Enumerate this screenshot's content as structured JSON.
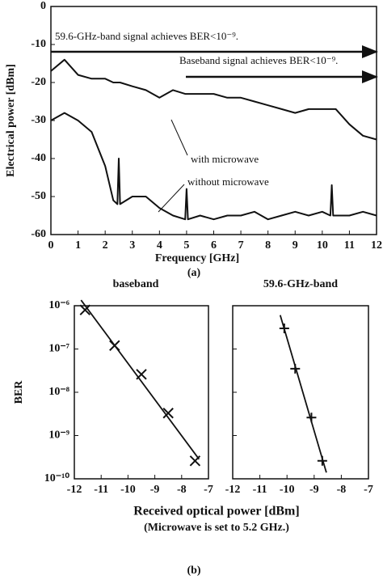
{
  "chart_data": [
    {
      "type": "line",
      "xlabel": "Frequency [GHz]",
      "ylabel": "Electrical power [dBm]",
      "caption": "(a)",
      "xlim": [
        0,
        12
      ],
      "ylim": [
        -60,
        0
      ],
      "xticks": [
        0,
        1,
        2,
        3,
        4,
        5,
        6,
        7,
        8,
        9,
        10,
        11,
        12
      ],
      "yticks": [
        0,
        -10,
        -20,
        -30,
        -40,
        -50,
        -60
      ],
      "annotations": [
        "59.6-GHz-band signal achieves BER<10⁻⁹.",
        "Baseband signal achieves BER<10⁻⁹."
      ],
      "x": [
        0,
        0.5,
        1,
        1.5,
        2,
        2.3,
        2.45,
        2.5,
        2.55,
        3,
        3.5,
        4,
        4.5,
        4.95,
        5,
        5.05,
        5.5,
        6,
        6.5,
        7,
        7.5,
        8,
        8.5,
        9,
        9.5,
        10,
        10.3,
        10.35,
        10.4,
        10.5,
        11,
        11.5,
        12
      ],
      "series": [
        {
          "name": "with microwave",
          "color": "#111111",
          "values": [
            -17,
            -14,
            -18,
            -19,
            -19,
            -20,
            -20,
            -20,
            -20,
            -21,
            -22,
            -24,
            -22,
            -23,
            -23,
            -23,
            -23,
            -23,
            -24,
            -24,
            -25,
            -26,
            -27,
            -28,
            -27,
            -27,
            -27,
            -27,
            -27,
            -27,
            -31,
            -34,
            -35
          ]
        },
        {
          "name": "without microwave",
          "color": "#111111",
          "values": [
            -30,
            -28,
            -30,
            -33,
            -42,
            -51,
            -52,
            -40,
            -52,
            -50,
            -50,
            -53,
            -55,
            -56,
            -48,
            -56,
            -55,
            -56,
            -55,
            -55,
            -54,
            -56,
            -55,
            -54,
            -55,
            -54,
            -55,
            -47,
            -55,
            -55,
            -55,
            -54,
            -55
          ]
        }
      ]
    },
    {
      "type": "scatter",
      "title": "baseband",
      "ylabel": "BER",
      "log_y": true,
      "marker": "x",
      "color": "#111111",
      "xlabel": "Received optical power [dBm]",
      "note": "(Microwave is set to 5.2 GHz.)",
      "caption": "(b)",
      "xlim": [
        -12,
        -7
      ],
      "ylim": [
        1e-10,
        1e-06
      ],
      "xticks": [
        -12,
        -11,
        -10,
        -9,
        -8,
        -7
      ],
      "yticks": [
        {
          "value": 1e-06,
          "label": "10⁻⁶"
        },
        {
          "value": 1e-07,
          "label": "10⁻⁷"
        },
        {
          "value": 1e-08,
          "label": "10⁻⁸"
        },
        {
          "value": 1e-09,
          "label": "10⁻⁹"
        },
        {
          "value": 1e-10,
          "label": "10⁻¹⁰"
        }
      ],
      "x": [
        -11.6,
        -10.5,
        -9.5,
        -8.5,
        -7.5
      ],
      "values": [
        8e-07,
        1.2e-07,
        2.6e-08,
        3.3e-09,
        2.6e-10
      ]
    },
    {
      "type": "scatter",
      "title": "59.6-GHz-band",
      "log_y": true,
      "marker": "+",
      "color": "#111111",
      "xlim": [
        -12,
        -7
      ],
      "ylim": [
        1e-10,
        1e-06
      ],
      "xticks": [
        -12,
        -11,
        -10,
        -9,
        -8,
        -7
      ],
      "x": [
        -10.1,
        -9.7,
        -9.1,
        -8.7
      ],
      "values": [
        3e-07,
        3.5e-08,
        2.6e-09,
        2.6e-10
      ]
    }
  ]
}
